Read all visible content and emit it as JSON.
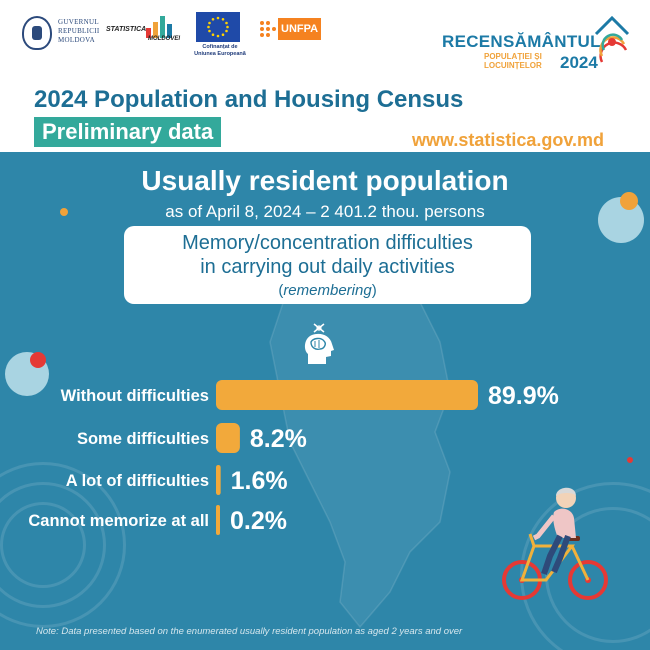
{
  "header": {
    "gov_logo_lines": [
      "GUVERNUL",
      "REPUBLICII",
      "MOLDOVA"
    ],
    "stat_logo_text_1": "STATISTICA",
    "stat_logo_text_2": "MOLDOVEI",
    "eu_caption_1": "Cofinanțat de",
    "eu_caption_2": "Uniunea Europeană",
    "unfpa_text": "UNFPA",
    "census_title": "RECENSĂMÂNTUL",
    "census_sub_1": "POPULAȚIEI ȘI",
    "census_sub_2": "LOCUINȚELOR",
    "census_year": "2024",
    "main_title": "2024 Population and Housing Census",
    "badge": "Preliminary data",
    "website": "www.statistica.gov.md"
  },
  "body": {
    "title": "Usually resident population",
    "subtitle": "as of April 8, 2024 – 2 401.2 thou. persons",
    "topic_line_1": "Memory/concentration difficulties",
    "topic_line_2": "in carrying out daily activities",
    "topic_line_3_open": "(",
    "topic_line_3_italic": "remembering",
    "topic_line_3_close": ")",
    "icon": "brain-head-icon",
    "note": "Note: Data presented based on the enumerated usually resident population as aged 2 years and over"
  },
  "colors": {
    "teal_bg": "#2e86a9",
    "bar": "#f2a93b",
    "title_blue": "#1d6e94",
    "badge_green": "#33a99b",
    "accent_orange": "#f0a23a",
    "accent_red": "#e53935"
  },
  "chart_data": {
    "type": "bar",
    "orientation": "horizontal",
    "categories": [
      "Without difficulties",
      "Some difficulties",
      "A lot of difficulties",
      "Cannot memorize at all"
    ],
    "values": [
      89.9,
      8.2,
      1.6,
      0.2
    ],
    "labels": [
      "89.9%",
      "8.2%",
      "1.6%",
      "0.2%"
    ],
    "unit": "%",
    "xlim": [
      0,
      89.9
    ],
    "grid": false,
    "legend": "none"
  }
}
